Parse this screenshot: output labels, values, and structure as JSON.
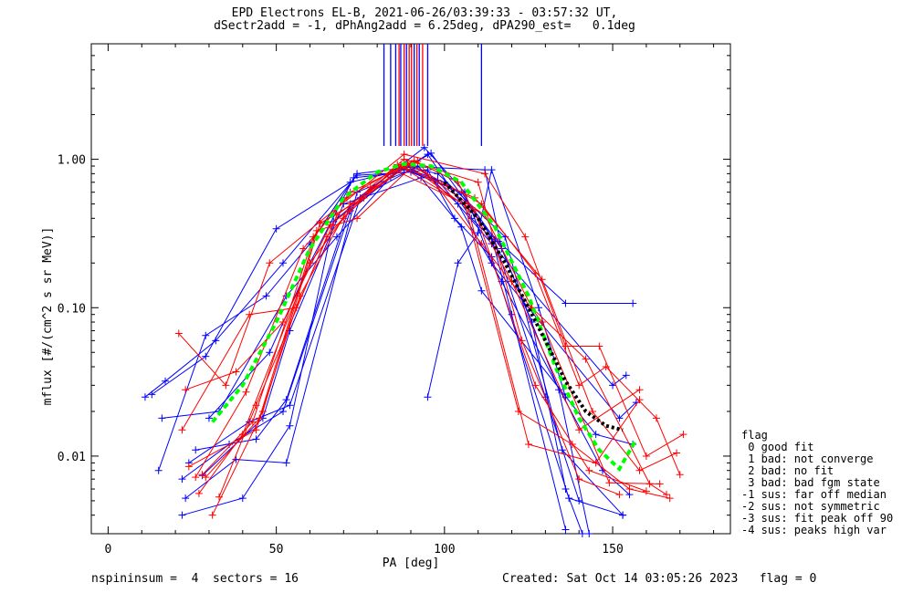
{
  "title": {
    "line1": "EPD Electrons EL-B, 2021-06-26/03:39:33 - 03:57:32 UT,",
    "line2": "dSectr2add = -1, dPhAng2add = 6.25deg, dPA290_est=   0.1deg"
  },
  "footer": {
    "left": "nspininsum =  4  sectors = 16",
    "right": "Created: Sat Oct 14 03:05:26 2023   flag = 0"
  },
  "legend": {
    "title": "flag",
    "items": [
      " 0 good fit",
      " 1 bad: not converge",
      " 2 bad: no fit",
      " 3 bad: bad fgm state",
      "-1 sus: far off median",
      "-2 sus: not symmetric",
      "-3 sus: fit peak off 90",
      "-4 sus: peaks high var"
    ]
  },
  "colors": {
    "blue": "#0000ff",
    "red": "#ff0000",
    "green": "#00ff00",
    "black": "#000000"
  },
  "chart_data": {
    "type": "line",
    "xlabel": "PA [deg]",
    "ylabel": "mflux [#/(cm^2 s sr MeV)]",
    "xlim": [
      -5,
      185
    ],
    "ylim": [
      0.003,
      6
    ],
    "yscale": "log",
    "xticks": [
      0,
      50,
      100,
      150
    ],
    "xticklabels": [
      "0",
      "50",
      "100",
      "150"
    ],
    "yticks": [
      0.01,
      0.1,
      1.0
    ],
    "yticklabels": [
      "0.01",
      "0.10",
      "1.00"
    ],
    "peak_markers": [
      {
        "x": 82,
        "color": "blue"
      },
      {
        "x": 84,
        "color": "blue"
      },
      {
        "x": 85.5,
        "color": "blue"
      },
      {
        "x": 86.5,
        "color": "red"
      },
      {
        "x": 87,
        "color": "blue"
      },
      {
        "x": 88,
        "color": "red"
      },
      {
        "x": 88.7,
        "color": "blue"
      },
      {
        "x": 89.5,
        "color": "red"
      },
      {
        "x": 90.2,
        "color": "red"
      },
      {
        "x": 91,
        "color": "blue"
      },
      {
        "x": 91.8,
        "color": "red"
      },
      {
        "x": 92.5,
        "color": "blue"
      },
      {
        "x": 93.5,
        "color": "red"
      },
      {
        "x": 95,
        "color": "blue"
      },
      {
        "x": 111,
        "color": "blue"
      }
    ],
    "series": [
      {
        "color": "blue",
        "points": [
          [
            11,
            0.025
          ],
          [
            17,
            0.032
          ],
          [
            32,
            0.06
          ],
          [
            52,
            0.2
          ],
          [
            74,
            0.78
          ],
          [
            90,
            0.82
          ],
          [
            105,
            0.6
          ],
          [
            117,
            0.25
          ],
          [
            126,
            0.08
          ],
          [
            136,
            0.006
          ],
          [
            141,
            0.003
          ]
        ]
      },
      {
        "color": "blue",
        "points": [
          [
            13,
            0.026
          ],
          [
            29,
            0.047
          ],
          [
            50,
            0.34
          ],
          [
            72,
            0.7
          ],
          [
            88,
            0.85
          ],
          [
            95,
            1.08
          ],
          [
            108,
            0.4
          ],
          [
            115,
            0.28
          ],
          [
            130,
            0.025
          ],
          [
            140,
            0.005
          ]
        ]
      },
      {
        "color": "blue",
        "points": [
          [
            15,
            0.008
          ],
          [
            29,
            0.065
          ],
          [
            47,
            0.12
          ],
          [
            60,
            0.27
          ],
          [
            74,
            0.8
          ],
          [
            91,
            0.89
          ],
          [
            112,
            0.85
          ],
          [
            117,
            0.25
          ],
          [
            134,
            0.028
          ],
          [
            143,
            0.003
          ]
        ]
      },
      {
        "color": "blue",
        "points": [
          [
            16,
            0.018
          ],
          [
            33,
            0.02
          ],
          [
            53,
            0.12
          ],
          [
            68,
            0.3
          ],
          [
            84,
            0.76
          ],
          [
            96,
            1.1
          ],
          [
            114,
            0.3
          ],
          [
            120,
            0.09
          ],
          [
            136,
            0.0032
          ]
        ]
      },
      {
        "color": "blue",
        "points": [
          [
            22,
            0.007
          ],
          [
            36,
            0.012
          ],
          [
            52,
            0.02
          ],
          [
            72,
            0.45
          ],
          [
            88,
            0.9
          ],
          [
            98,
            0.8
          ],
          [
            118,
            0.3
          ],
          [
            135,
            0.011
          ],
          [
            153,
            0.004
          ]
        ]
      },
      {
        "color": "blue",
        "points": [
          [
            23,
            0.0052
          ],
          [
            38,
            0.0095
          ],
          [
            53,
            0.009
          ],
          [
            74,
            0.6
          ],
          [
            90,
            0.85
          ],
          [
            100,
            0.7
          ],
          [
            116,
            0.28
          ],
          [
            136,
            0.107
          ],
          [
            156,
            0.107
          ]
        ]
      },
      {
        "color": "blue",
        "points": [
          [
            22,
            0.004
          ],
          [
            40,
            0.0052
          ],
          [
            54,
            0.016
          ],
          [
            67,
            0.38
          ],
          [
            86,
            0.88
          ],
          [
            98,
            0.72
          ],
          [
            114,
            0.27
          ],
          [
            150,
            0.03
          ],
          [
            154,
            0.035
          ]
        ]
      },
      {
        "color": "blue",
        "points": [
          [
            24,
            0.009
          ],
          [
            42,
            0.017
          ],
          [
            54,
            0.022
          ],
          [
            75,
            0.55
          ],
          [
            92,
            0.9
          ],
          [
            104,
            0.5
          ],
          [
            117,
            0.15
          ],
          [
            147,
            0.008
          ],
          [
            155,
            0.0055
          ]
        ]
      },
      {
        "color": "blue",
        "points": [
          [
            26,
            0.011
          ],
          [
            44,
            0.013
          ],
          [
            53,
            0.024
          ],
          [
            72,
            0.5
          ],
          [
            94,
            1.2
          ],
          [
            106,
            0.6
          ],
          [
            114,
            0.2
          ],
          [
            152,
            0.018
          ],
          [
            157,
            0.023
          ]
        ]
      },
      {
        "color": "blue",
        "points": [
          [
            28,
            0.0074
          ],
          [
            46,
            0.018
          ],
          [
            54,
            0.07
          ],
          [
            70,
            0.5
          ],
          [
            93,
            0.75
          ],
          [
            105,
            0.35
          ],
          [
            111,
            0.13
          ],
          [
            145,
            0.014
          ],
          [
            156,
            0.012
          ]
        ]
      },
      {
        "color": "blue",
        "points": [
          [
            30,
            0.018
          ],
          [
            48,
            0.05
          ],
          [
            60,
            0.2
          ],
          [
            73,
            0.75
          ],
          [
            95,
            0.85
          ],
          [
            103,
            0.4
          ],
          [
            114,
            0.22
          ],
          [
            137,
            0.0052
          ],
          [
            153,
            0.004
          ]
        ]
      },
      {
        "color": "blue",
        "points": [
          [
            95,
            0.025
          ],
          [
            104,
            0.2
          ],
          [
            110,
            0.32
          ],
          [
            114,
            0.85
          ],
          [
            128,
            0.1
          ],
          [
            136,
            0.025
          ]
        ]
      },
      {
        "color": "red",
        "points": [
          [
            21,
            0.067
          ],
          [
            35,
            0.03
          ],
          [
            48,
            0.2
          ],
          [
            63,
            0.38
          ],
          [
            88,
            1.08
          ],
          [
            112,
            0.8
          ],
          [
            124,
            0.3
          ],
          [
            136,
            0.055
          ],
          [
            146,
            0.055
          ],
          [
            160,
            0.01
          ],
          [
            171,
            0.014
          ]
        ]
      },
      {
        "color": "red",
        "points": [
          [
            23,
            0.028
          ],
          [
            38,
            0.037
          ],
          [
            52,
            0.08
          ],
          [
            66,
            0.36
          ],
          [
            89,
            0.95
          ],
          [
            111,
            0.5
          ],
          [
            127,
            0.17
          ],
          [
            140,
            0.03
          ],
          [
            148,
            0.04
          ],
          [
            163,
            0.018
          ],
          [
            170,
            0.0075
          ]
        ]
      },
      {
        "color": "red",
        "points": [
          [
            22,
            0.015
          ],
          [
            42,
            0.09
          ],
          [
            56,
            0.1
          ],
          [
            68,
            0.42
          ],
          [
            87,
            0.9
          ],
          [
            109,
            0.55
          ],
          [
            129,
            0.155
          ],
          [
            144,
            0.02
          ],
          [
            158,
            0.008
          ],
          [
            169,
            0.0105
          ]
        ]
      },
      {
        "color": "red",
        "points": [
          [
            24,
            0.0085
          ],
          [
            44,
            0.015
          ],
          [
            57,
            0.12
          ],
          [
            72,
            0.5
          ],
          [
            90,
            0.93
          ],
          [
            112,
            0.42
          ],
          [
            126,
            0.1
          ],
          [
            142,
            0.045
          ],
          [
            161,
            0.0065
          ],
          [
            166,
            0.0055
          ]
        ]
      },
      {
        "color": "red",
        "points": [
          [
            26,
            0.0072
          ],
          [
            41,
            0.027
          ],
          [
            58,
            0.25
          ],
          [
            71,
            0.55
          ],
          [
            85,
            0.85
          ],
          [
            106,
            0.5
          ],
          [
            122,
            0.02
          ],
          [
            138,
            0.012
          ],
          [
            155,
            0.006
          ],
          [
            167,
            0.0052
          ]
        ]
      },
      {
        "color": "red",
        "points": [
          [
            27,
            0.0056
          ],
          [
            40,
            0.014
          ],
          [
            60,
            0.2
          ],
          [
            70,
            0.4
          ],
          [
            86,
            0.92
          ],
          [
            109,
            0.45
          ],
          [
            127,
            0.03
          ],
          [
            143,
            0.008
          ],
          [
            160,
            0.0058
          ]
        ]
      },
      {
        "color": "red",
        "points": [
          [
            28,
            0.0075
          ],
          [
            43,
            0.017
          ],
          [
            61,
            0.3
          ],
          [
            72,
            0.6
          ],
          [
            89,
            0.92
          ],
          [
            107,
            0.47
          ],
          [
            125,
            0.012
          ],
          [
            145,
            0.009
          ],
          [
            158,
            0.024
          ]
        ]
      },
      {
        "color": "red",
        "points": [
          [
            29,
            0.0072
          ],
          [
            45,
            0.018
          ],
          [
            62,
            0.33
          ],
          [
            74,
            0.4
          ],
          [
            92,
            0.97
          ],
          [
            111,
            0.27
          ],
          [
            129,
            0.08
          ],
          [
            149,
            0.0066
          ],
          [
            164,
            0.0065
          ]
        ]
      },
      {
        "color": "red",
        "points": [
          [
            31,
            0.004
          ],
          [
            46,
            0.02
          ],
          [
            63,
            0.37
          ],
          [
            76,
            0.55
          ],
          [
            91,
            0.98
          ],
          [
            104,
            0.7
          ],
          [
            120,
            0.15
          ],
          [
            140,
            0.015
          ],
          [
            158,
            0.028
          ]
        ]
      },
      {
        "color": "red",
        "points": [
          [
            33,
            0.0053
          ],
          [
            44,
            0.022
          ],
          [
            65,
            0.3
          ],
          [
            78,
            0.65
          ],
          [
            88,
            1.0
          ],
          [
            110,
            0.7
          ],
          [
            123,
            0.06
          ],
          [
            140,
            0.007
          ],
          [
            152,
            0.0055
          ]
        ]
      },
      {
        "color": "green",
        "dashed": true,
        "points": [
          [
            31,
            0.017
          ],
          [
            40,
            0.03
          ],
          [
            50,
            0.08
          ],
          [
            60,
            0.25
          ],
          [
            70,
            0.55
          ],
          [
            80,
            0.82
          ],
          [
            88,
            0.93
          ],
          [
            96,
            0.9
          ],
          [
            105,
            0.7
          ],
          [
            115,
            0.35
          ],
          [
            125,
            0.12
          ],
          [
            133,
            0.04
          ],
          [
            140,
            0.018
          ],
          [
            146,
            0.011
          ],
          [
            152,
            0.0082
          ],
          [
            157,
            0.013
          ]
        ]
      },
      {
        "color": "black",
        "dotted": true,
        "points": [
          [
            100,
            0.7
          ],
          [
            110,
            0.4
          ],
          [
            118,
            0.2
          ],
          [
            124,
            0.11
          ],
          [
            130,
            0.06
          ],
          [
            136,
            0.032
          ],
          [
            142,
            0.02
          ],
          [
            148,
            0.016
          ],
          [
            153,
            0.015
          ]
        ]
      }
    ]
  }
}
